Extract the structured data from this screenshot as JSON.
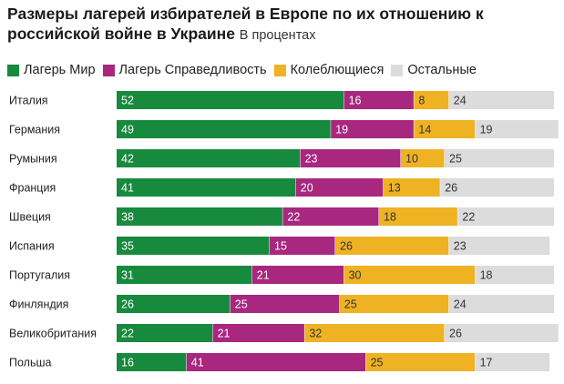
{
  "title": {
    "main": "Размеры лагерей избирателей в Европе по их отношению к российской войне в Украине",
    "unit": "В процентах"
  },
  "colors": {
    "peace": "#178a3e",
    "justice": "#a8277f",
    "undecided": "#eeb223",
    "others": "#dcdcdc"
  },
  "chart_data": {
    "type": "bar",
    "orientation": "horizontal-stacked-100",
    "title": "Размеры лагерей избирателей в Европе по их отношению к российской войне в Украине",
    "subtitle": "В процентах",
    "legend_position": "top-left",
    "categories": [
      "Италия",
      "Германия",
      "Румыния",
      "Франция",
      "Швеция",
      "Испания",
      "Португалия",
      "Финляндия",
      "Великобритания",
      "Польша"
    ],
    "series": [
      {
        "name": "Лагерь Мир",
        "key": "peace",
        "values": [
          52,
          49,
          42,
          41,
          38,
          35,
          31,
          26,
          22,
          16
        ]
      },
      {
        "name": "Лагерь Справедливость",
        "key": "justice",
        "values": [
          16,
          19,
          23,
          20,
          22,
          15,
          21,
          25,
          21,
          41
        ]
      },
      {
        "name": "Колеблющиеся",
        "key": "undecided",
        "values": [
          8,
          14,
          10,
          13,
          18,
          26,
          30,
          25,
          32,
          25
        ]
      },
      {
        "name": "Остальные",
        "key": "others",
        "values": [
          24,
          19,
          25,
          26,
          22,
          23,
          18,
          24,
          26,
          17
        ]
      }
    ],
    "xlim": [
      0,
      100
    ]
  }
}
